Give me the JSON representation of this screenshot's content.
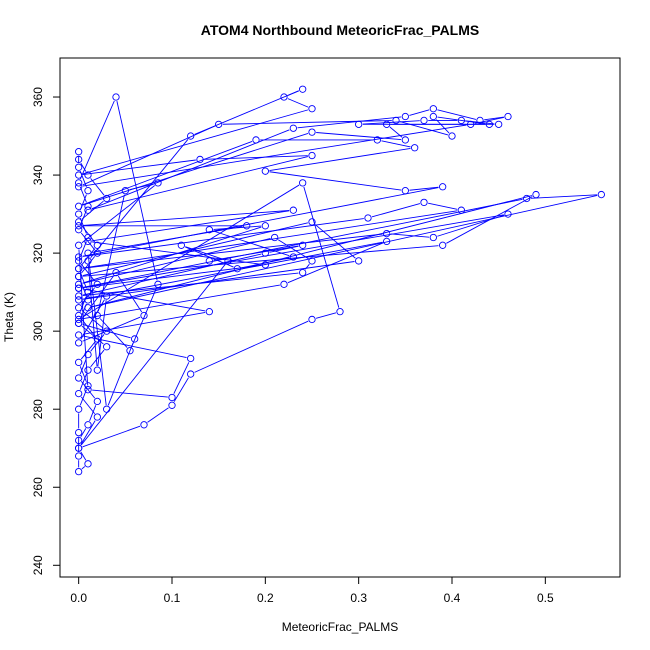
{
  "chart_data": {
    "type": "line",
    "title": "ATOM4 Northbound MeteoricFrac_PALMS",
    "xlabel": "MeteoricFrac_PALMS",
    "ylabel": "Theta (K)",
    "xlim": [
      -0.02,
      0.58
    ],
    "ylim": [
      237,
      370
    ],
    "xticks": [
      0.0,
      0.1,
      0.2,
      0.3,
      0.4,
      0.5
    ],
    "xtick_labels": [
      "0.0",
      "0.1",
      "0.2",
      "0.3",
      "0.4",
      "0.5"
    ],
    "yticks": [
      240,
      260,
      280,
      300,
      320,
      340,
      360
    ],
    "ytick_labels": [
      "240",
      "260",
      "280",
      "300",
      "320",
      "340",
      "360"
    ],
    "grid": false,
    "color": "#0000ff",
    "marker": "open-circle",
    "series": [
      {
        "values": [
          [
            0.0,
            272
          ],
          [
            0.01,
            276
          ],
          [
            0.02,
            282
          ],
          [
            0.0,
            288
          ],
          [
            0.01,
            294
          ],
          [
            0.03,
            300
          ],
          [
            0.0,
            306
          ],
          [
            0.02,
            312
          ],
          [
            0.0,
            318
          ],
          [
            0.01,
            324
          ],
          [
            0.0,
            330
          ],
          [
            0.01,
            336
          ],
          [
            0.0,
            342
          ],
          [
            0.0,
            346
          ],
          [
            0.0,
            344
          ],
          [
            0.01,
            340
          ],
          [
            0.03,
            334
          ],
          [
            0.0,
            328
          ],
          [
            0.02,
            322
          ],
          [
            0.0,
            316
          ],
          [
            0.01,
            310
          ],
          [
            0.0,
            304
          ],
          [
            0.02,
            298
          ],
          [
            0.0,
            292
          ],
          [
            0.01,
            286
          ],
          [
            0.0,
            280
          ],
          [
            0.0,
            274
          ],
          [
            0.0,
            268
          ],
          [
            0.0,
            264
          ],
          [
            0.01,
            266
          ],
          [
            0.0,
            270
          ],
          [
            0.02,
            278
          ],
          [
            0.0,
            284
          ],
          [
            0.01,
            290
          ],
          [
            0.03,
            296
          ],
          [
            0.0,
            302
          ],
          [
            0.01,
            308
          ],
          [
            0.0,
            314
          ],
          [
            0.02,
            320
          ],
          [
            0.0,
            326
          ],
          [
            0.01,
            332
          ],
          [
            0.0,
            338
          ],
          [
            0.04,
            360
          ],
          [
            0.085,
            312
          ],
          [
            0.055,
            295
          ],
          [
            0.02,
            304
          ],
          [
            0.05,
            336
          ],
          [
            0.085,
            338
          ],
          [
            0.0,
            322
          ],
          [
            0.01,
            285
          ],
          [
            0.1,
            283
          ],
          [
            0.12,
            293
          ],
          [
            0.0,
            299
          ],
          [
            0.14,
            305
          ],
          [
            0.0,
            311
          ],
          [
            0.2,
            317
          ],
          [
            0.01,
            323
          ],
          [
            0.23,
            331
          ],
          [
            0.0,
            327
          ],
          [
            0.18,
            327
          ],
          [
            0.01,
            320
          ],
          [
            0.03,
            280
          ],
          [
            0.06,
            298
          ],
          [
            0.0,
            302
          ],
          [
            0.04,
            315
          ],
          [
            0.07,
            304
          ],
          [
            0.0,
            297
          ],
          [
            0.03,
            309
          ],
          [
            0.02,
            290
          ],
          [
            0.01,
            318
          ],
          [
            0.12,
            350
          ],
          [
            0.24,
            362
          ],
          [
            0.22,
            360
          ],
          [
            0.25,
            357
          ],
          [
            0.0,
            340
          ],
          [
            0.13,
            344
          ],
          [
            0.25,
            345
          ],
          [
            0.01,
            331
          ],
          [
            0.23,
            352
          ],
          [
            0.35,
            355
          ],
          [
            0.38,
            357
          ],
          [
            0.43,
            354
          ],
          [
            0.46,
            355
          ],
          [
            0.42,
            353
          ],
          [
            0.0,
            337
          ],
          [
            0.15,
            353
          ],
          [
            0.34,
            354
          ],
          [
            0.4,
            350
          ],
          [
            0.38,
            355
          ],
          [
            0.44,
            353
          ],
          [
            0.3,
            353
          ],
          [
            0.37,
            354
          ],
          [
            0.41,
            354
          ],
          [
            0.45,
            353
          ],
          [
            0.33,
            353
          ],
          [
            0.35,
            349
          ],
          [
            0.25,
            351
          ],
          [
            0.0,
            332
          ],
          [
            0.19,
            349
          ],
          [
            0.32,
            349
          ],
          [
            0.36,
            347
          ],
          [
            0.2,
            341
          ],
          [
            0.35,
            336
          ],
          [
            0.39,
            337
          ],
          [
            0.0,
            319
          ],
          [
            0.31,
            329
          ],
          [
            0.37,
            333
          ],
          [
            0.41,
            331
          ],
          [
            0.0,
            316
          ],
          [
            0.33,
            325
          ],
          [
            0.38,
            324
          ],
          [
            0.46,
            330
          ],
          [
            0.0,
            311
          ],
          [
            0.48,
            334
          ],
          [
            0.56,
            335
          ],
          [
            0.01,
            306
          ],
          [
            0.49,
            335
          ],
          [
            0.39,
            322
          ],
          [
            0.0,
            314
          ],
          [
            0.25,
            328
          ],
          [
            0.3,
            318
          ],
          [
            0.0,
            308
          ],
          [
            0.33,
            323
          ],
          [
            0.22,
            312
          ],
          [
            0.0,
            303
          ],
          [
            0.24,
            338
          ],
          [
            0.28,
            305
          ],
          [
            0.25,
            303
          ],
          [
            0.12,
            289
          ],
          [
            0.1,
            281
          ],
          [
            0.07,
            276
          ],
          [
            0.0,
            270
          ],
          [
            0.16,
            318
          ],
          [
            0.11,
            322
          ],
          [
            0.17,
            316
          ],
          [
            0.23,
            319
          ],
          [
            0.14,
            326
          ],
          [
            0.2,
            327
          ],
          [
            0.0,
            312
          ],
          [
            0.21,
            324
          ],
          [
            0.25,
            318
          ],
          [
            0.24,
            315
          ],
          [
            0.0,
            309
          ],
          [
            0.2,
            320
          ],
          [
            0.24,
            322
          ],
          [
            0.14,
            318
          ]
        ]
      }
    ]
  }
}
